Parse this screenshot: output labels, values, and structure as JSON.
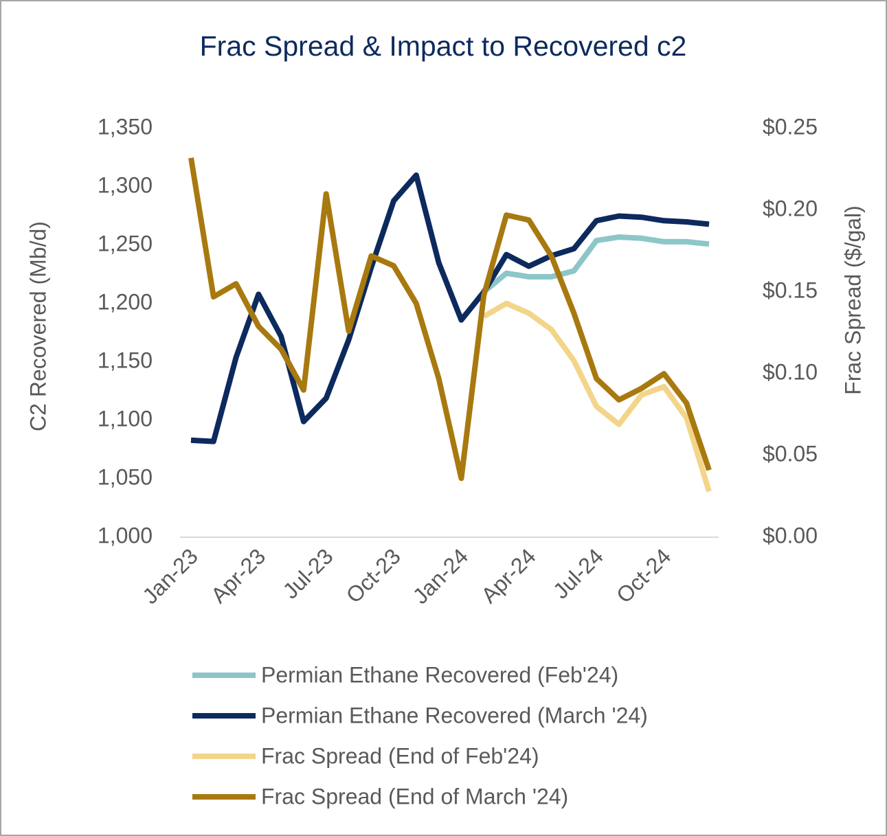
{
  "chart_data": {
    "type": "line",
    "title": "Frac Spread & Impact to Recovered c2",
    "y_label": "C2 Recovered (Mb/d)",
    "y2_label": "Frac Spread ($/gal)",
    "categories": [
      "Jan-23",
      null,
      null,
      "Apr-23",
      null,
      null,
      "Jul-23",
      null,
      null,
      "Oct-23",
      null,
      null,
      "Jan-24",
      null,
      null,
      "Apr-24",
      null,
      null,
      "Jul-24",
      null,
      null,
      "Oct-24",
      null,
      null
    ],
    "ylim": [
      1000,
      1350
    ],
    "yticks": [
      {
        "value": 1000,
        "label": "1,000"
      },
      {
        "value": 1050,
        "label": "1,050"
      },
      {
        "value": 1100,
        "label": "1,100"
      },
      {
        "value": 1150,
        "label": "1,150"
      },
      {
        "value": 1200,
        "label": "1,200"
      },
      {
        "value": 1250,
        "label": "1,250"
      },
      {
        "value": 1300,
        "label": "1,300"
      },
      {
        "value": 1350,
        "label": "1,350"
      }
    ],
    "y2lim": [
      0,
      0.25
    ],
    "y2ticks": [
      {
        "value": 0,
        "label": "$0.00"
      },
      {
        "value": 0.05,
        "label": "$0.05"
      },
      {
        "value": 0.1,
        "label": "$0.10"
      },
      {
        "value": 0.15,
        "label": "$0.15"
      },
      {
        "value": 0.2,
        "label": "$0.20"
      },
      {
        "value": 0.25,
        "label": "$0.25"
      }
    ],
    "grid": false,
    "legend": "bottom",
    "series": [
      {
        "name": "Permian Ethane Recovered (Feb'24)",
        "color": "#8cc6c8",
        "axis": "y",
        "values": [
          null,
          null,
          null,
          null,
          null,
          null,
          null,
          null,
          null,
          null,
          null,
          null,
          null,
          1210,
          1226,
          1223,
          1223,
          1228,
          1254,
          1257,
          1256,
          1253,
          1253,
          1251
        ]
      },
      {
        "name": "Permian Ethane Recovered (March '24)",
        "color": "#0d2a5e",
        "axis": "y",
        "values": [
          1083,
          1082,
          1154,
          1208,
          1172,
          1099,
          1119,
          1169,
          1231,
          1288,
          1310,
          1235,
          1186,
          1210,
          1242,
          1232,
          1241,
          1247,
          1271,
          1275,
          1274,
          1271,
          1270,
          1268
        ]
      },
      {
        "name": "Frac Spread (End of Feb'24)",
        "color": "#f3d58a",
        "axis": "y2",
        "values": [
          null,
          null,
          null,
          null,
          null,
          null,
          null,
          null,
          null,
          null,
          null,
          null,
          null,
          0.135,
          0.143,
          0.137,
          0.127,
          0.108,
          0.08,
          0.069,
          0.087,
          0.092,
          0.073,
          0.028
        ]
      },
      {
        "name": "Frac Spread (End of March '24)",
        "color": "#a8790f",
        "axis": "y2",
        "values": [
          0.232,
          0.147,
          0.155,
          0.129,
          0.115,
          0.09,
          0.21,
          0.126,
          0.172,
          0.166,
          0.143,
          0.097,
          0.036,
          0.148,
          0.197,
          0.194,
          0.172,
          0.137,
          0.097,
          0.084,
          0.091,
          0.1,
          0.082,
          0.041
        ]
      }
    ]
  }
}
